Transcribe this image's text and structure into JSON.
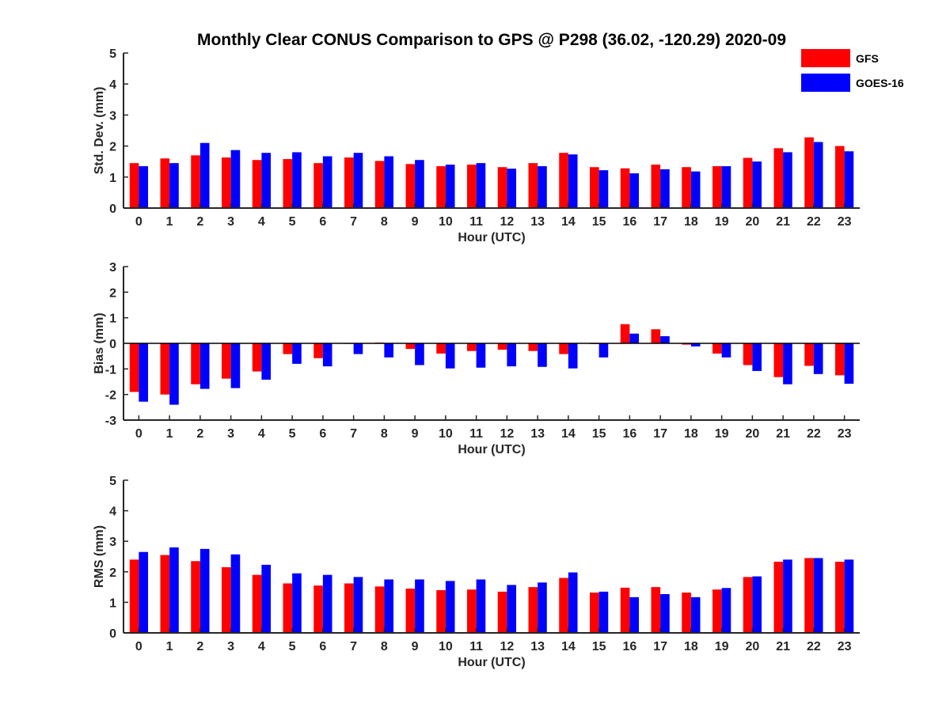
{
  "figure": {
    "title": "Monthly Clear CONUS Comparison to GPS @ P298 (36.02, -120.29) 2020-09"
  },
  "legend": {
    "placement": "top-right",
    "entries": [
      {
        "name": "GFS",
        "color": "#ff0000"
      },
      {
        "name": "GOES-16",
        "color": "#0000ff"
      }
    ]
  },
  "chart_data": [
    {
      "type": "bar",
      "panel": "std",
      "xlabel": "Hour (UTC)",
      "ylabel": "Std. Dev. (mm)",
      "ylim": [
        0,
        5
      ],
      "yticks": [
        0,
        1,
        2,
        3,
        4,
        5
      ],
      "categories": [
        "0",
        "1",
        "2",
        "3",
        "4",
        "5",
        "6",
        "7",
        "8",
        "9",
        "10",
        "11",
        "12",
        "13",
        "14",
        "15",
        "16",
        "17",
        "18",
        "19",
        "20",
        "21",
        "22",
        "23"
      ],
      "series": [
        {
          "name": "GFS",
          "color": "#ff0000",
          "values": [
            1.45,
            1.6,
            1.7,
            1.63,
            1.55,
            1.58,
            1.45,
            1.63,
            1.52,
            1.42,
            1.35,
            1.4,
            1.32,
            1.45,
            1.78,
            1.32,
            1.28,
            1.4,
            1.32,
            1.35,
            1.62,
            1.93,
            2.28,
            2.0
          ]
        },
        {
          "name": "GOES-16",
          "color": "#0000ff",
          "values": [
            1.35,
            1.45,
            2.1,
            1.87,
            1.78,
            1.8,
            1.67,
            1.78,
            1.67,
            1.55,
            1.4,
            1.45,
            1.27,
            1.35,
            1.73,
            1.22,
            1.12,
            1.25,
            1.18,
            1.35,
            1.5,
            1.8,
            2.13,
            1.83
          ]
        }
      ]
    },
    {
      "type": "bar",
      "panel": "bias",
      "xlabel": "Hour (UTC)",
      "ylabel": "Bias (mm)",
      "ylim": [
        -3,
        3
      ],
      "yticks": [
        -3,
        -2,
        -1,
        0,
        1,
        2,
        3
      ],
      "categories": [
        "0",
        "1",
        "2",
        "3",
        "4",
        "5",
        "6",
        "7",
        "8",
        "9",
        "10",
        "11",
        "12",
        "13",
        "14",
        "15",
        "16",
        "17",
        "18",
        "19",
        "20",
        "21",
        "22",
        "23"
      ],
      "series": [
        {
          "name": "GFS",
          "color": "#ff0000",
          "values": [
            -1.9,
            -2.0,
            -1.6,
            -1.38,
            -1.1,
            -0.42,
            -0.58,
            -0.02,
            0.03,
            -0.22,
            -0.4,
            -0.3,
            -0.25,
            -0.3,
            -0.42,
            -0.03,
            0.75,
            0.55,
            -0.05,
            -0.4,
            -0.85,
            -1.32,
            -0.88,
            -1.25
          ]
        },
        {
          "name": "GOES-16",
          "color": "#0000ff",
          "values": [
            -2.28,
            -2.4,
            -1.78,
            -1.75,
            -1.42,
            -0.8,
            -0.9,
            -0.42,
            -0.55,
            -0.85,
            -0.98,
            -0.95,
            -0.9,
            -0.92,
            -0.98,
            -0.55,
            0.38,
            0.28,
            -0.12,
            -0.55,
            -1.08,
            -1.6,
            -1.2,
            -1.58
          ]
        }
      ]
    },
    {
      "type": "bar",
      "panel": "rms",
      "xlabel": "Hour (UTC)",
      "ylabel": "RMS (mm)",
      "ylim": [
        0,
        5
      ],
      "yticks": [
        0,
        1,
        2,
        3,
        4,
        5
      ],
      "categories": [
        "0",
        "1",
        "2",
        "3",
        "4",
        "5",
        "6",
        "7",
        "8",
        "9",
        "10",
        "11",
        "12",
        "13",
        "14",
        "15",
        "16",
        "17",
        "18",
        "19",
        "20",
        "21",
        "22",
        "23"
      ],
      "series": [
        {
          "name": "GFS",
          "color": "#ff0000",
          "values": [
            2.4,
            2.55,
            2.35,
            2.15,
            1.9,
            1.62,
            1.55,
            1.62,
            1.52,
            1.45,
            1.4,
            1.42,
            1.35,
            1.5,
            1.8,
            1.32,
            1.48,
            1.5,
            1.32,
            1.42,
            1.83,
            2.33,
            2.45,
            2.33
          ]
        },
        {
          "name": "GOES-16",
          "color": "#0000ff",
          "values": [
            2.65,
            2.8,
            2.75,
            2.57,
            2.23,
            1.95,
            1.9,
            1.83,
            1.75,
            1.75,
            1.7,
            1.75,
            1.57,
            1.65,
            1.98,
            1.35,
            1.17,
            1.27,
            1.17,
            1.47,
            1.85,
            2.4,
            2.45,
            2.4
          ]
        }
      ]
    }
  ]
}
